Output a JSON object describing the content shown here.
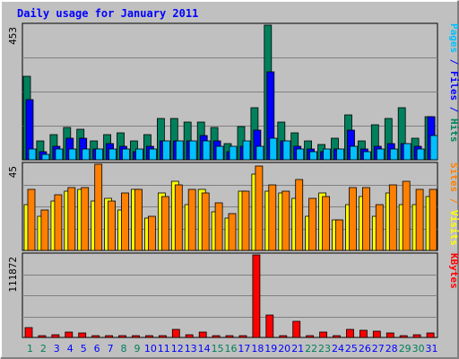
{
  "title": "Daily usage for January 2011",
  "colors": {
    "background": "#C0C0C0",
    "frame_light": "#FFFFFF",
    "frame_dark": "#808080",
    "title": "#0000FF",
    "grid": "#808080",
    "hits": "#00805C",
    "files": "#0000FF",
    "pages": "#00C0FF",
    "visits": "#FFFF00",
    "sites": "#FF8000",
    "kbytes": "#FF0000",
    "weekday_label": "#0000FF",
    "weekend_label": "#00805C"
  },
  "chart_data": [
    {
      "type": "bar",
      "name": "hits-files-pages",
      "max_label": "453",
      "ylim": [
        0,
        453
      ],
      "right_label": {
        "parts": [
          {
            "text": "Pages",
            "color_key": "pages"
          },
          {
            "text": " / ",
            "color_key": "files"
          },
          {
            "text": "Files",
            "color_key": "files"
          },
          {
            "text": " / ",
            "color_key": "files"
          },
          {
            "text": "Hits",
            "color_key": "hits"
          }
        ]
      },
      "series": [
        {
          "key": "hits",
          "values": [
            282,
            64,
            86,
            110,
            102,
            64,
            86,
            92,
            64,
            86,
            138,
            138,
            128,
            128,
            110,
            55,
            113,
            174,
            453,
            128,
            92,
            64,
            50,
            73,
            152,
            64,
            118,
            138,
            174,
            73,
            146
          ]
        },
        {
          "key": "files",
          "values": [
            201,
            27,
            46,
            73,
            73,
            36,
            55,
            46,
            27,
            46,
            64,
            64,
            64,
            82,
            64,
            27,
            46,
            101,
            296,
            64,
            46,
            36,
            27,
            36,
            101,
            36,
            46,
            55,
            55,
            46,
            146
          ]
        },
        {
          "key": "pages",
          "values": [
            36,
            18,
            36,
            36,
            36,
            36,
            36,
            36,
            36,
            36,
            64,
            64,
            64,
            64,
            46,
            46,
            64,
            46,
            73,
            64,
            36,
            27,
            36,
            36,
            46,
            27,
            36,
            36,
            55,
            36,
            82
          ]
        }
      ]
    },
    {
      "type": "bar",
      "name": "visits-sites",
      "max_label": "45",
      "ylim": [
        0,
        45
      ],
      "right_label": {
        "parts": [
          {
            "text": "Sites",
            "color_key": "sites"
          },
          {
            "text": " / ",
            "color_key": "sites"
          },
          {
            "text": "Visits",
            "color_key": "visits"
          }
        ]
      },
      "series": [
        {
          "key": "visits",
          "values": [
            24,
            18,
            26,
            31,
            32,
            26,
            27,
            21,
            32,
            17,
            30,
            36,
            24,
            32,
            20,
            17,
            31,
            40,
            31,
            30,
            27,
            18,
            30,
            16,
            24,
            28,
            18,
            30,
            24,
            24,
            28
          ]
        },
        {
          "key": "sites",
          "values": [
            32,
            21,
            29,
            33,
            33,
            45,
            26,
            30,
            32,
            18,
            28,
            34,
            32,
            30,
            25,
            19,
            31,
            44,
            34,
            31,
            37,
            27,
            28,
            16,
            33,
            33,
            24,
            34,
            36,
            32,
            32
          ]
        }
      ]
    },
    {
      "type": "bar",
      "name": "kbytes",
      "max_label": "111872",
      "ylim": [
        0,
        111872
      ],
      "right_label": {
        "parts": [
          {
            "text": "KBytes",
            "color_key": "kbytes"
          }
        ]
      },
      "series": [
        {
          "key": "kbytes",
          "values": [
            13982,
            2796,
            3496,
            6991,
            5592,
            2796,
            2796,
            2796,
            2796,
            2796,
            2796,
            11185,
            3496,
            6991,
            2796,
            2796,
            2796,
            111872,
            30761,
            2796,
            22370,
            2796,
            6991,
            2796,
            11185,
            9787,
            8389,
            5592,
            2796,
            4194,
            5592
          ]
        }
      ]
    }
  ],
  "days": [
    "1",
    "2",
    "3",
    "4",
    "5",
    "6",
    "7",
    "8",
    "9",
    "10",
    "11",
    "12",
    "13",
    "14",
    "15",
    "16",
    "17",
    "18",
    "19",
    "20",
    "21",
    "22",
    "23",
    "24",
    "25",
    "26",
    "27",
    "28",
    "29",
    "30",
    "31"
  ],
  "weekend_days": [
    1,
    2,
    8,
    9,
    15,
    16,
    22,
    23,
    29,
    30
  ]
}
